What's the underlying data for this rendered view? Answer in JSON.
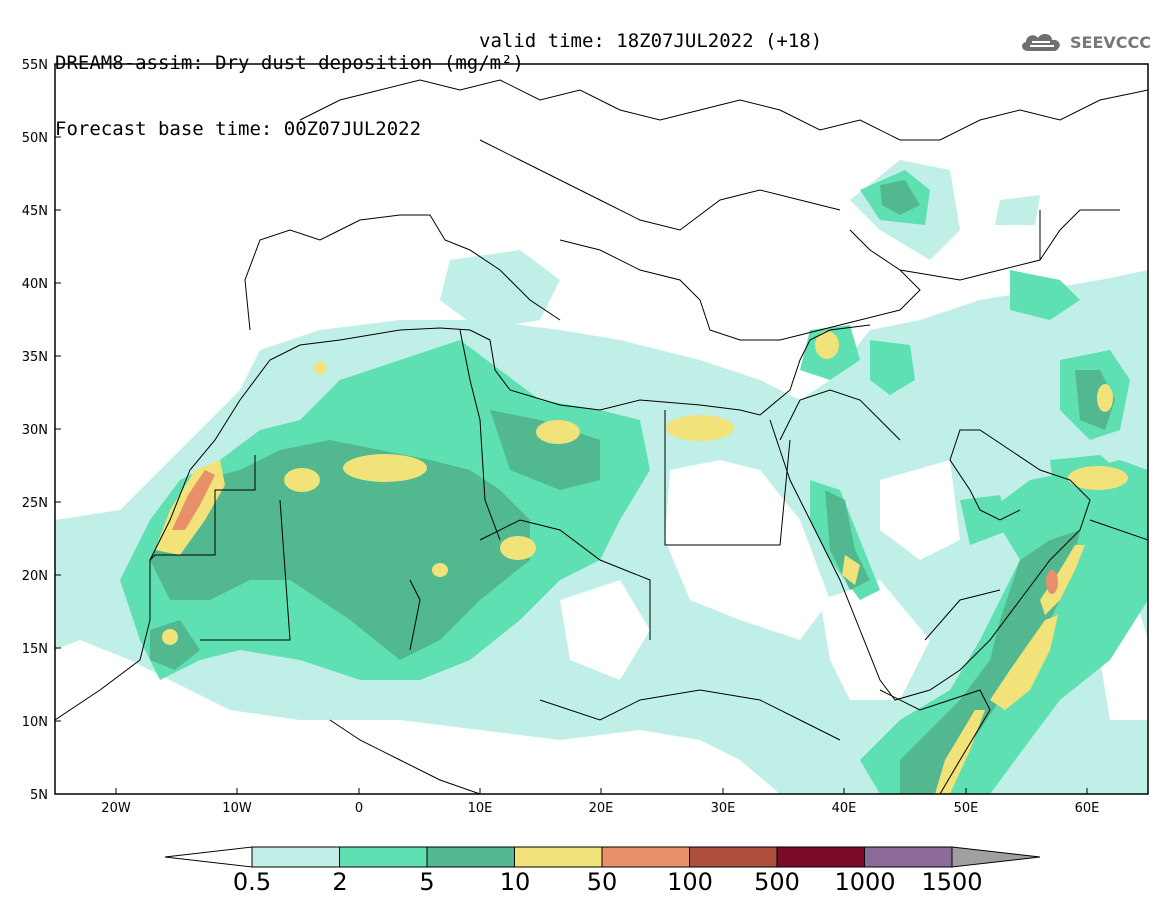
{
  "header": {
    "title_line1": "DREAM8-assim: Dry dust deposition (mg/m²)",
    "title_line2": "Forecast base time: 00Z07JUL2022",
    "valid_time": "valid time: 18Z07JUL2022 (+18)"
  },
  "logo": {
    "icon": "cloud-logo-icon",
    "text": "SEEVCCC"
  },
  "map": {
    "lat_labels": [
      "55N",
      "50N",
      "45N",
      "40N",
      "35N",
      "30N",
      "25N",
      "20N",
      "15N",
      "10N",
      "5N"
    ],
    "lon_labels": [
      "20W",
      "10W",
      "0",
      "10E",
      "20E",
      "30E",
      "40E",
      "50E",
      "60E"
    ]
  },
  "colorbar": {
    "labels": [
      "0.5",
      "2",
      "5",
      "10",
      "50",
      "100",
      "500",
      "1000",
      "1500"
    ],
    "colors": [
      "#bfefe6",
      "#5ee0b3",
      "#52b890",
      "#f2e27a",
      "#e98f6a",
      "#ad4e3e",
      "#7b0b28",
      "#8c6a99"
    ],
    "under_color": "#ffffff",
    "over_color": "#a0a0a0"
  },
  "colors": {
    "c1": "#bfefe6",
    "c2": "#5ee0b3",
    "c3": "#52b890",
    "c4": "#f2e27a",
    "c5": "#e98f6a"
  }
}
